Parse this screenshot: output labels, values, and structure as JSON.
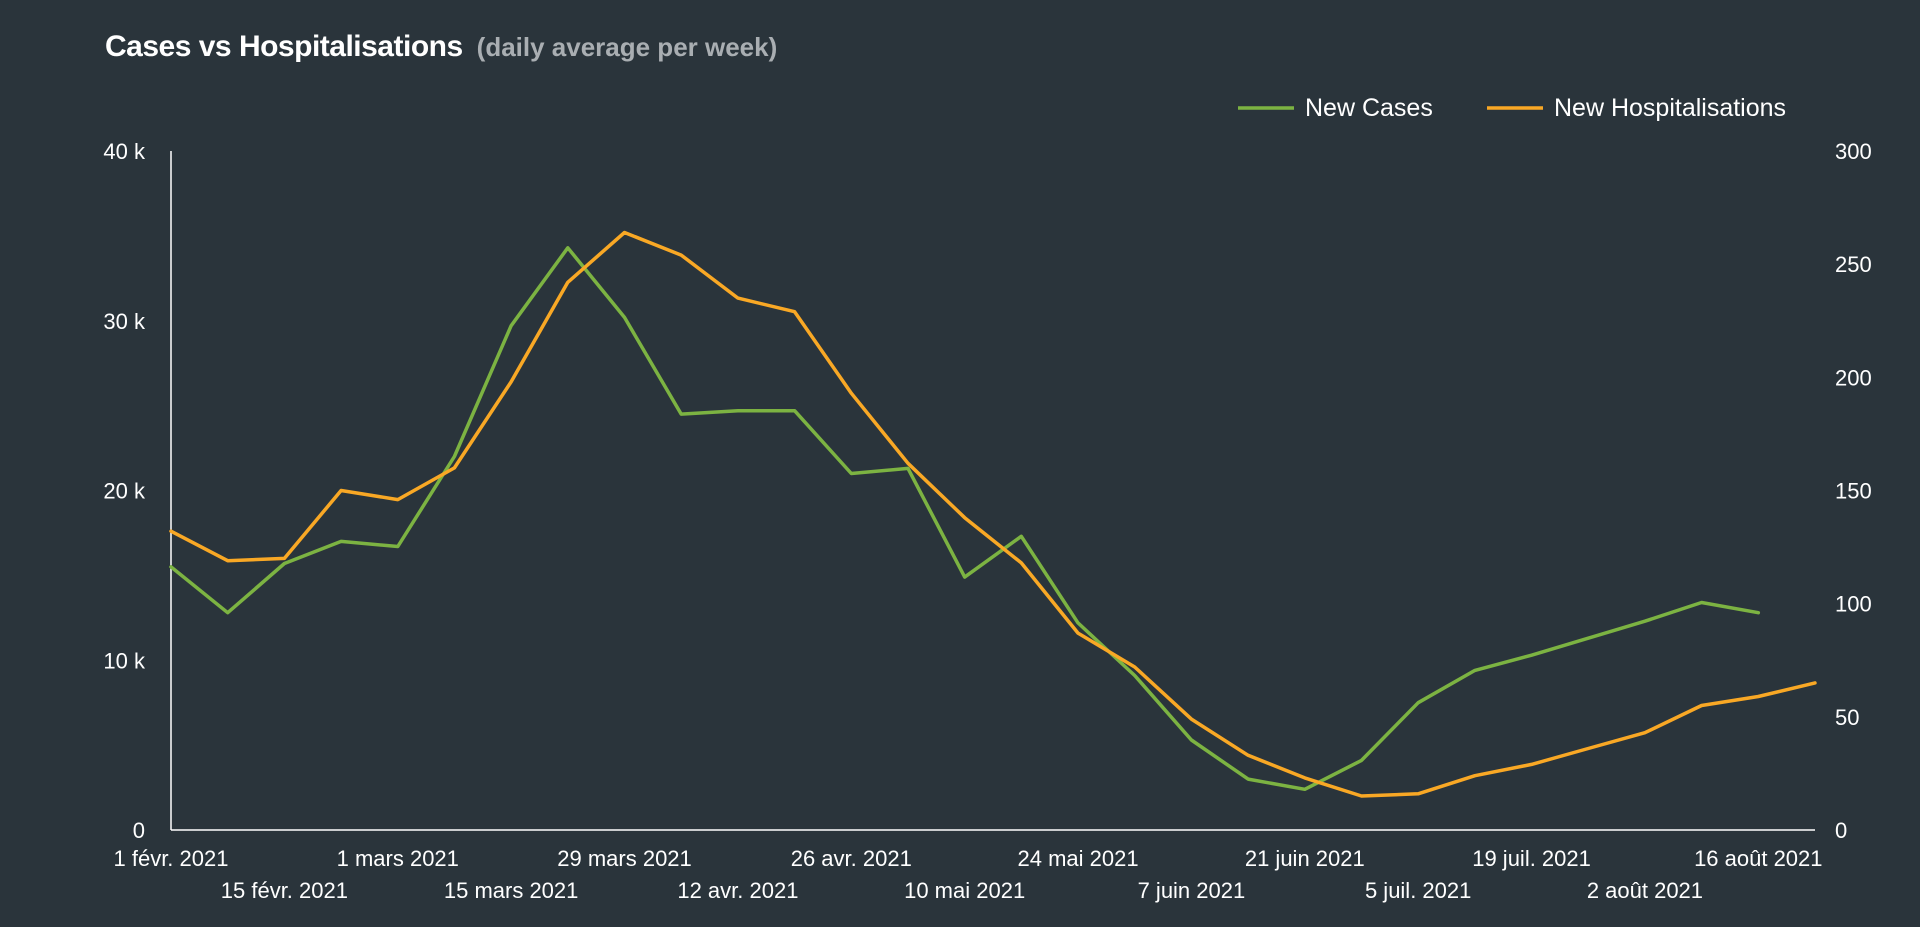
{
  "title": "Cases vs Hospitalisations",
  "subtitle": "(daily average per week)",
  "colors": {
    "background": "#2a343b",
    "cases": "#7cb342",
    "hospitalisations": "#f9a825",
    "axis": "#ffffff",
    "subtitle": "#a9aeb2"
  },
  "legend_position": "top-right",
  "chart_data": {
    "type": "line",
    "title": "Cases vs Hospitalisations",
    "subtitle": "(daily average per week)",
    "grid": false,
    "x_tick_labels": [
      "1 févr. 2021",
      "15 févr. 2021",
      "1 mars 2021",
      "15 mars 2021",
      "29 mars 2021",
      "12 avr. 2021",
      "26 avr. 2021",
      "10 mai 2021",
      "24 mai 2021",
      "7 juin 2021",
      "21 juin 2021",
      "5 juil. 2021",
      "19 juil. 2021",
      "2 août 2021",
      "16 août 2021"
    ],
    "x_tick_weeks": [
      0,
      2,
      4,
      6,
      8,
      10,
      12,
      14,
      16,
      18,
      20,
      22,
      24,
      26,
      28
    ],
    "y_left": {
      "lim": [
        0,
        40000
      ],
      "ticks": [
        0,
        10000,
        20000,
        30000,
        40000
      ],
      "tick_labels": [
        "0",
        "10 k",
        "20 k",
        "30 k",
        "40 k"
      ]
    },
    "y_right": {
      "lim": [
        0,
        300
      ],
      "ticks": [
        0,
        50,
        100,
        150,
        200,
        250,
        300
      ],
      "tick_labels": [
        "0",
        "50",
        "100",
        "150",
        "200",
        "250",
        "300"
      ]
    },
    "series": [
      {
        "name": "New Cases",
        "axis": "left",
        "color": "#7cb342",
        "x": [
          0,
          1,
          2,
          3,
          4,
          5,
          6,
          7,
          8,
          9,
          10,
          11,
          12,
          13,
          14,
          15,
          16,
          17,
          18,
          19,
          20,
          21,
          22,
          23,
          24,
          25,
          26,
          27,
          28
        ],
        "values": [
          15500,
          12800,
          15700,
          17000,
          16700,
          22000,
          29700,
          34300,
          30200,
          24500,
          24700,
          24700,
          21000,
          21300,
          14900,
          17300,
          12200,
          9100,
          5300,
          3000,
          2400,
          4100,
          7500,
          9400,
          10300,
          11300,
          12300,
          13400,
          12800
        ]
      },
      {
        "name": "New Hospitalisations",
        "axis": "right",
        "color": "#f9a825",
        "x": [
          0,
          1,
          2,
          3,
          4,
          5,
          6,
          7,
          8,
          9,
          10,
          11,
          12,
          13,
          14,
          15,
          16,
          17,
          18,
          19,
          20,
          21,
          22,
          23,
          24,
          25,
          26,
          27,
          28,
          29
        ],
        "values": [
          132,
          119,
          120,
          150,
          146,
          160,
          198,
          242,
          264,
          254,
          235,
          229,
          193,
          162,
          138,
          118,
          87,
          72,
          49,
          33,
          23,
          15,
          16,
          24,
          29,
          36,
          43,
          55,
          59,
          65
        ]
      }
    ]
  }
}
